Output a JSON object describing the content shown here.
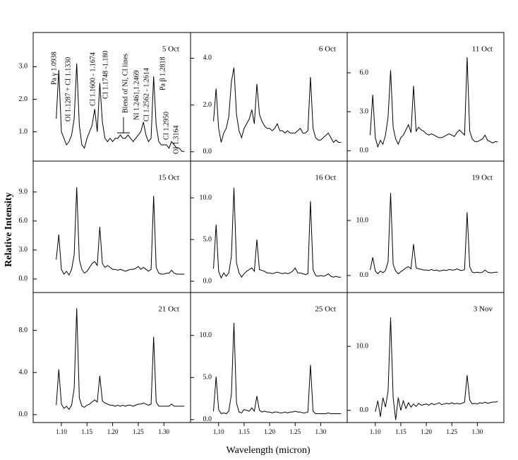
{
  "ylabel": "Relative Intensity",
  "xlabel": "Wavelength (micron)",
  "chart_data": [
    {
      "type": "line",
      "title": "5 Oct",
      "color": "#000000",
      "xlim": [
        1.045,
        1.352
      ],
      "ylim": [
        0.1,
        4.05
      ],
      "yticks": [
        {
          "value": 1,
          "label": "1.0"
        },
        {
          "value": 2,
          "label": "2.0"
        },
        {
          "value": 3,
          "label": "3.0"
        }
      ],
      "annotations": [
        "Pa γ 1.0938",
        "OI 1.1287 + CI 1.1330",
        "CI 1.1600 - 1.1674",
        "CI 1.1748 -1.180",
        "Blend of NI, CI lines",
        "NI 1.2461,1.2469",
        "CI 1.2562 - 1.2614",
        "Pa β 1.2818",
        "CI 1.2950",
        "OI 1.3164"
      ],
      "x": [
        1.09,
        1.095,
        1.1,
        1.105,
        1.11,
        1.115,
        1.12,
        1.125,
        1.13,
        1.135,
        1.14,
        1.145,
        1.15,
        1.155,
        1.16,
        1.165,
        1.17,
        1.175,
        1.18,
        1.185,
        1.19,
        1.195,
        1.2,
        1.205,
        1.21,
        1.215,
        1.22,
        1.225,
        1.23,
        1.235,
        1.24,
        1.245,
        1.25,
        1.255,
        1.26,
        1.265,
        1.27,
        1.275,
        1.28,
        1.285,
        1.29,
        1.295,
        1.3,
        1.305,
        1.31,
        1.315,
        1.32,
        1.325,
        1.33,
        1.335,
        1.34
      ],
      "values": [
        1.4,
        2.9,
        1.0,
        0.8,
        0.6,
        0.7,
        0.9,
        1.4,
        3.1,
        1.2,
        0.6,
        0.5,
        0.8,
        1.0,
        1.2,
        1.7,
        1.0,
        2.5,
        1.3,
        0.8,
        0.7,
        0.8,
        0.7,
        0.8,
        0.8,
        0.9,
        0.8,
        0.8,
        0.9,
        0.8,
        0.7,
        0.8,
        0.9,
        1.0,
        1.3,
        0.9,
        0.7,
        0.8,
        2.7,
        1.2,
        0.7,
        0.6,
        0.6,
        0.6,
        0.5,
        0.7,
        0.6,
        0.5,
        0.5,
        0.4,
        0.4
      ]
    },
    {
      "type": "line",
      "title": "6 Oct",
      "color": "#000000",
      "xlim": [
        1.045,
        1.352
      ],
      "ylim": [
        -0.4,
        5.1
      ],
      "yticks": [
        {
          "value": 0,
          "label": "0.0"
        },
        {
          "value": 2,
          "label": "2.0"
        },
        {
          "value": 4,
          "label": "4.0"
        }
      ],
      "x": [
        1.09,
        1.095,
        1.1,
        1.105,
        1.11,
        1.115,
        1.12,
        1.125,
        1.13,
        1.135,
        1.14,
        1.145,
        1.15,
        1.155,
        1.16,
        1.165,
        1.17,
        1.175,
        1.18,
        1.185,
        1.19,
        1.195,
        1.2,
        1.205,
        1.21,
        1.215,
        1.22,
        1.225,
        1.23,
        1.235,
        1.24,
        1.245,
        1.25,
        1.255,
        1.26,
        1.265,
        1.27,
        1.275,
        1.28,
        1.285,
        1.29,
        1.295,
        1.3,
        1.305,
        1.31,
        1.315,
        1.32,
        1.325,
        1.33,
        1.335,
        1.34
      ],
      "values": [
        1.3,
        2.7,
        1.0,
        0.4,
        0.8,
        1.0,
        1.5,
        3.0,
        3.6,
        1.6,
        0.9,
        0.6,
        1.0,
        1.2,
        1.4,
        1.8,
        1.2,
        2.9,
        1.6,
        1.3,
        1.1,
        1.0,
        1.0,
        0.9,
        1.0,
        1.2,
        0.9,
        0.9,
        0.8,
        0.9,
        0.8,
        0.8,
        0.8,
        0.9,
        1.0,
        0.8,
        0.8,
        0.9,
        3.2,
        1.0,
        0.6,
        0.5,
        0.5,
        0.6,
        0.7,
        0.8,
        0.6,
        0.4,
        0.5,
        0.4,
        0.4
      ]
    },
    {
      "type": "line",
      "title": "11 Oct",
      "color": "#000000",
      "xlim": [
        1.045,
        1.352
      ],
      "ylim": [
        -0.8,
        9.1
      ],
      "yticks": [
        {
          "value": 0,
          "label": "0.0"
        },
        {
          "value": 3,
          "label": "3.0"
        },
        {
          "value": 6,
          "label": "6.0"
        }
      ],
      "x": [
        1.09,
        1.095,
        1.1,
        1.105,
        1.11,
        1.115,
        1.12,
        1.125,
        1.13,
        1.135,
        1.14,
        1.145,
        1.15,
        1.155,
        1.16,
        1.165,
        1.17,
        1.175,
        1.18,
        1.185,
        1.19,
        1.195,
        1.2,
        1.205,
        1.21,
        1.215,
        1.22,
        1.225,
        1.23,
        1.235,
        1.24,
        1.245,
        1.25,
        1.255,
        1.26,
        1.265,
        1.27,
        1.275,
        1.28,
        1.285,
        1.29,
        1.295,
        1.3,
        1.305,
        1.31,
        1.315,
        1.32,
        1.325,
        1.33,
        1.335,
        1.34
      ],
      "values": [
        1.2,
        4.3,
        1.0,
        0.3,
        0.8,
        0.5,
        1.2,
        2.6,
        6.2,
        1.8,
        0.9,
        0.5,
        1.0,
        1.2,
        1.6,
        2.0,
        1.4,
        5.0,
        1.5,
        1.8,
        1.6,
        1.5,
        1.3,
        1.2,
        1.3,
        1.2,
        1.1,
        1.0,
        1.0,
        1.1,
        1.2,
        1.3,
        1.2,
        1.1,
        1.4,
        1.6,
        1.4,
        1.2,
        7.2,
        1.5,
        0.9,
        0.7,
        0.7,
        0.8,
        0.9,
        1.2,
        0.8,
        0.7,
        0.6,
        0.7,
        0.7
      ]
    },
    {
      "type": "line",
      "title": "15 Oct",
      "color": "#000000",
      "xlim": [
        1.045,
        1.352
      ],
      "ylim": [
        -1.4,
        12.2
      ],
      "yticks": [
        {
          "value": 0,
          "label": "0.0"
        },
        {
          "value": 3,
          "label": "3.0"
        },
        {
          "value": 6,
          "label": "6.0"
        },
        {
          "value": 9,
          "label": "9.0"
        }
      ],
      "x": [
        1.09,
        1.095,
        1.1,
        1.105,
        1.11,
        1.115,
        1.12,
        1.125,
        1.13,
        1.135,
        1.14,
        1.145,
        1.15,
        1.155,
        1.16,
        1.165,
        1.17,
        1.175,
        1.18,
        1.185,
        1.19,
        1.195,
        1.2,
        1.205,
        1.21,
        1.215,
        1.22,
        1.225,
        1.23,
        1.235,
        1.24,
        1.245,
        1.25,
        1.255,
        1.26,
        1.265,
        1.27,
        1.275,
        1.28,
        1.285,
        1.29,
        1.295,
        1.3,
        1.305,
        1.31,
        1.315,
        1.32,
        1.325,
        1.33,
        1.335,
        1.34
      ],
      "values": [
        2.0,
        4.6,
        1.0,
        0.5,
        0.8,
        0.4,
        1.0,
        2.5,
        9.5,
        2.0,
        1.0,
        0.6,
        0.8,
        1.2,
        1.6,
        1.8,
        1.4,
        5.4,
        1.6,
        1.2,
        1.4,
        1.2,
        1.0,
        1.0,
        0.9,
        1.0,
        0.9,
        0.8,
        0.9,
        1.0,
        1.0,
        1.1,
        1.3,
        1.0,
        1.2,
        1.0,
        0.8,
        1.0,
        8.6,
        1.2,
        0.6,
        0.5,
        0.5,
        0.6,
        0.6,
        0.9,
        0.6,
        0.5,
        0.5,
        0.5,
        0.5
      ]
    },
    {
      "type": "line",
      "title": "16 Oct",
      "color": "#000000",
      "xlim": [
        1.045,
        1.352
      ],
      "ylim": [
        -1.35,
        14.4
      ],
      "yticks": [
        {
          "value": 0,
          "label": "0.0"
        },
        {
          "value": 5,
          "label": "5.0"
        },
        {
          "value": 10,
          "label": "10.0"
        }
      ],
      "x": [
        1.09,
        1.095,
        1.1,
        1.105,
        1.11,
        1.115,
        1.12,
        1.125,
        1.13,
        1.135,
        1.14,
        1.145,
        1.15,
        1.155,
        1.16,
        1.165,
        1.17,
        1.175,
        1.18,
        1.185,
        1.19,
        1.195,
        1.2,
        1.205,
        1.21,
        1.215,
        1.22,
        1.225,
        1.23,
        1.235,
        1.24,
        1.245,
        1.25,
        1.255,
        1.26,
        1.265,
        1.27,
        1.275,
        1.28,
        1.285,
        1.29,
        1.295,
        1.3,
        1.305,
        1.31,
        1.315,
        1.32,
        1.325,
        1.33,
        1.335,
        1.34
      ],
      "values": [
        1.5,
        6.8,
        1.2,
        0.4,
        1.0,
        0.6,
        1.0,
        3.0,
        11.2,
        2.2,
        1.0,
        0.5,
        0.9,
        1.2,
        1.4,
        1.6,
        1.2,
        5.0,
        1.4,
        1.3,
        1.2,
        1.0,
        1.0,
        0.9,
        1.0,
        1.1,
        1.0,
        0.9,
        1.0,
        0.9,
        1.0,
        1.2,
        1.6,
        1.0,
        1.0,
        0.9,
        0.8,
        0.9,
        9.6,
        1.4,
        0.7,
        0.6,
        0.7,
        0.6,
        0.7,
        0.9,
        0.6,
        0.5,
        0.6,
        0.5,
        0.5
      ]
    },
    {
      "type": "line",
      "title": "19 Oct",
      "color": "#000000",
      "xlim": [
        1.045,
        1.352
      ],
      "ylim": [
        -3.1,
        20.8
      ],
      "yticks": [
        {
          "value": 0,
          "label": "0.0"
        },
        {
          "value": 10,
          "label": "10.0"
        }
      ],
      "x": [
        1.09,
        1.095,
        1.1,
        1.105,
        1.11,
        1.115,
        1.12,
        1.125,
        1.13,
        1.135,
        1.14,
        1.145,
        1.15,
        1.155,
        1.16,
        1.165,
        1.17,
        1.175,
        1.18,
        1.185,
        1.19,
        1.195,
        1.2,
        1.205,
        1.21,
        1.215,
        1.22,
        1.225,
        1.23,
        1.235,
        1.24,
        1.245,
        1.25,
        1.255,
        1.26,
        1.265,
        1.27,
        1.275,
        1.28,
        1.285,
        1.29,
        1.295,
        1.3,
        1.305,
        1.31,
        1.315,
        1.32,
        1.325,
        1.33,
        1.335,
        1.34
      ],
      "values": [
        1.0,
        3.3,
        0.8,
        0.3,
        0.8,
        0.5,
        0.9,
        2.5,
        15.0,
        2.0,
        0.8,
        0.3,
        0.7,
        1.0,
        1.4,
        1.6,
        1.2,
        5.7,
        1.4,
        1.2,
        1.1,
        1.0,
        1.0,
        0.9,
        1.1,
        0.9,
        1.0,
        0.8,
        0.9,
        1.0,
        0.9,
        1.1,
        1.0,
        1.0,
        1.2,
        1.0,
        0.9,
        1.1,
        11.5,
        1.6,
        0.6,
        0.5,
        0.6,
        0.5,
        0.6,
        1.0,
        0.6,
        0.5,
        0.5,
        0.6,
        0.6
      ]
    },
    {
      "type": "line",
      "title": "21 Oct",
      "color": "#000000",
      "xlim": [
        1.045,
        1.352
      ],
      "ylim": [
        -0.75,
        11.6
      ],
      "yticks": [
        {
          "value": 0,
          "label": "0.0"
        },
        {
          "value": 4,
          "label": "4.0"
        },
        {
          "value": 8,
          "label": "8.0"
        }
      ],
      "xticks": [
        {
          "value": 1.1,
          "label": "1.10"
        },
        {
          "value": 1.15,
          "label": "1.15"
        },
        {
          "value": 1.2,
          "label": "1.20"
        },
        {
          "value": 1.25,
          "label": "1.25"
        },
        {
          "value": 1.3,
          "label": "1.30"
        }
      ],
      "x": [
        1.09,
        1.095,
        1.1,
        1.105,
        1.11,
        1.115,
        1.12,
        1.125,
        1.13,
        1.135,
        1.14,
        1.145,
        1.15,
        1.155,
        1.16,
        1.165,
        1.17,
        1.175,
        1.18,
        1.185,
        1.19,
        1.195,
        1.2,
        1.205,
        1.21,
        1.215,
        1.22,
        1.225,
        1.23,
        1.235,
        1.24,
        1.245,
        1.25,
        1.255,
        1.26,
        1.265,
        1.27,
        1.275,
        1.28,
        1.285,
        1.29,
        1.295,
        1.3,
        1.305,
        1.31,
        1.315,
        1.32,
        1.325,
        1.33,
        1.335,
        1.34
      ],
      "values": [
        0.9,
        4.3,
        1.0,
        0.6,
        0.8,
        0.5,
        0.9,
        2.5,
        10.1,
        1.6,
        0.8,
        0.7,
        0.9,
        1.0,
        1.2,
        1.4,
        1.2,
        3.7,
        1.3,
        1.1,
        1.0,
        0.9,
        0.9,
        0.8,
        0.9,
        0.8,
        0.9,
        0.8,
        0.9,
        0.9,
        0.8,
        0.9,
        1.0,
        1.0,
        1.1,
        1.0,
        0.9,
        1.0,
        7.4,
        1.2,
        0.8,
        0.8,
        0.8,
        0.8,
        0.8,
        1.0,
        0.8,
        0.8,
        0.8,
        0.8,
        0.8
      ]
    },
    {
      "type": "line",
      "title": "25 Oct",
      "color": "#000000",
      "xlim": [
        1.045,
        1.352
      ],
      "ylim": [
        -0.35,
        15.1
      ],
      "yticks": [
        {
          "value": 0,
          "label": "0.0"
        },
        {
          "value": 5,
          "label": "5.0"
        },
        {
          "value": 10,
          "label": "10.0"
        }
      ],
      "xticks": [
        {
          "value": 1.1,
          "label": "1.10"
        },
        {
          "value": 1.15,
          "label": "1.15"
        },
        {
          "value": 1.2,
          "label": "1.20"
        },
        {
          "value": 1.25,
          "label": "1.25"
        },
        {
          "value": 1.3,
          "label": "1.30"
        }
      ],
      "x": [
        1.09,
        1.095,
        1.1,
        1.105,
        1.11,
        1.115,
        1.12,
        1.125,
        1.13,
        1.135,
        1.14,
        1.145,
        1.15,
        1.155,
        1.16,
        1.165,
        1.17,
        1.175,
        1.18,
        1.185,
        1.19,
        1.195,
        1.2,
        1.205,
        1.21,
        1.215,
        1.22,
        1.225,
        1.23,
        1.235,
        1.24,
        1.245,
        1.25,
        1.255,
        1.26,
        1.265,
        1.27,
        1.275,
        1.28,
        1.285,
        1.29,
        1.295,
        1.3,
        1.305,
        1.31,
        1.315,
        1.32,
        1.325,
        1.33,
        1.335,
        1.34
      ],
      "values": [
        1.0,
        5.1,
        1.2,
        0.7,
        0.8,
        0.7,
        1.0,
        3.0,
        11.5,
        2.0,
        0.9,
        0.8,
        1.2,
        1.1,
        1.0,
        1.4,
        1.0,
        2.8,
        1.1,
        0.9,
        1.0,
        0.9,
        0.9,
        0.8,
        0.9,
        0.9,
        0.8,
        0.8,
        0.9,
        0.8,
        0.9,
        0.9,
        1.0,
        0.9,
        0.9,
        0.8,
        0.8,
        0.9,
        6.5,
        1.0,
        0.7,
        0.7,
        0.7,
        0.7,
        0.7,
        0.8,
        0.7,
        0.7,
        0.7,
        0.7,
        0.7
      ]
    },
    {
      "type": "line",
      "title": "3 Nov",
      "color": "#000000",
      "xlim": [
        1.045,
        1.352
      ],
      "ylim": [
        -1.9,
        18.4
      ],
      "yticks": [
        {
          "value": 0,
          "label": "0.0"
        },
        {
          "value": 10,
          "label": "10.0"
        }
      ],
      "xticks": [
        {
          "value": 1.1,
          "label": "1.10"
        },
        {
          "value": 1.15,
          "label": "1.15"
        },
        {
          "value": 1.2,
          "label": "1.20"
        },
        {
          "value": 1.25,
          "label": "1.25"
        },
        {
          "value": 1.3,
          "label": "1.30"
        }
      ],
      "x": [
        1.09,
        1.095,
        1.1,
        1.105,
        1.11,
        1.115,
        1.12,
        1.125,
        1.13,
        1.135,
        1.14,
        1.145,
        1.15,
        1.155,
        1.16,
        1.165,
        1.17,
        1.175,
        1.18,
        1.185,
        1.19,
        1.195,
        1.2,
        1.205,
        1.21,
        1.215,
        1.22,
        1.225,
        1.23,
        1.235,
        1.24,
        1.245,
        1.25,
        1.255,
        1.26,
        1.265,
        1.27,
        1.275,
        1.28,
        1.285,
        1.29,
        1.295,
        1.3,
        1.305,
        1.31,
        1.315,
        1.32,
        1.325,
        1.33,
        1.335,
        1.34
      ],
      "values": [
        null,
        null,
        -0.2,
        1.5,
        -1.0,
        2.0,
        0.5,
        3.0,
        14.5,
        2.0,
        -1.5,
        2.0,
        0.0,
        1.5,
        0.3,
        1.2,
        0.5,
        1.0,
        0.6,
        1.1,
        0.8,
        0.9,
        1.0,
        0.8,
        1.1,
        0.9,
        1.0,
        1.2,
        0.9,
        1.0,
        1.1,
        1.0,
        1.2,
        1.0,
        1.1,
        1.0,
        1.1,
        1.3,
        5.5,
        1.6,
        1.0,
        1.1,
        1.0,
        1.2,
        1.1,
        1.3,
        1.1,
        1.2,
        1.3,
        1.3,
        1.4
      ]
    }
  ]
}
